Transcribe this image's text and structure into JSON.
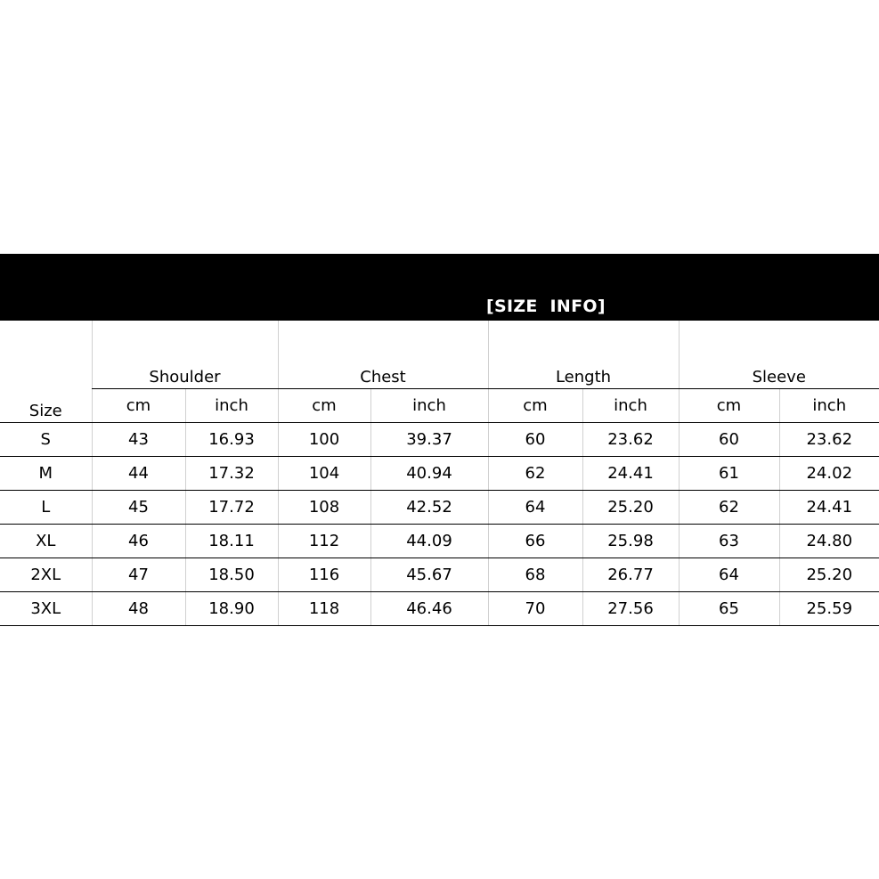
{
  "title": "[SIZE  INFO]",
  "table": {
    "size_header": "Size",
    "groups": [
      "Shoulder",
      "Chest",
      "Length",
      "Sleeve"
    ],
    "units": [
      "cm",
      "inch",
      "cm",
      "inch",
      "cm",
      "inch",
      "cm",
      "inch"
    ],
    "rows": [
      [
        "S",
        "43",
        "16.93",
        "100",
        "39.37",
        "60",
        "23.62",
        "60",
        "23.62"
      ],
      [
        "M",
        "44",
        "17.32",
        "104",
        "40.94",
        "62",
        "24.41",
        "61",
        "24.02"
      ],
      [
        "L",
        "45",
        "17.72",
        "108",
        "42.52",
        "64",
        "25.20",
        "62",
        "24.41"
      ],
      [
        "XL",
        "46",
        "18.11",
        "112",
        "44.09",
        "66",
        "25.98",
        "63",
        "24.80"
      ],
      [
        "2XL",
        "47",
        "18.50",
        "116",
        "45.67",
        "68",
        "26.77",
        "64",
        "25.20"
      ],
      [
        "3XL",
        "48",
        "18.90",
        "118",
        "46.46",
        "70",
        "27.56",
        "65",
        "25.59"
      ]
    ]
  }
}
